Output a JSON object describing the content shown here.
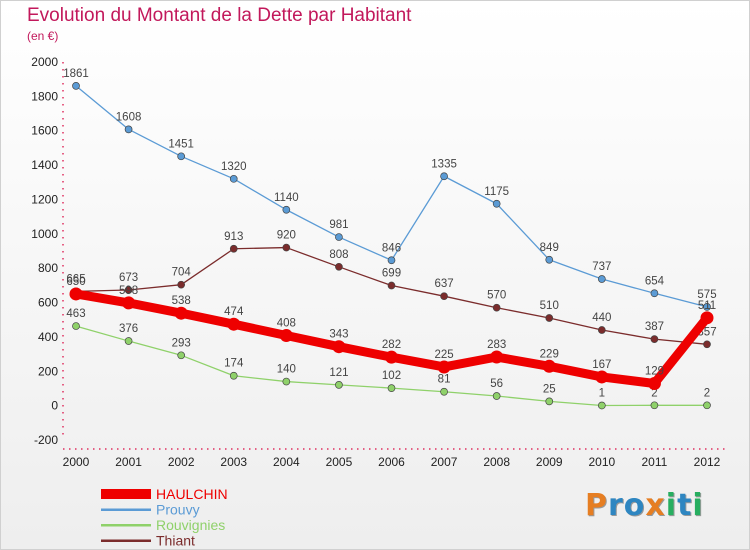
{
  "title": "Evolution du Montant de la Dette par Habitant",
  "subtitle": "(en €)",
  "logo": {
    "text": "Proxiti",
    "colors": [
      "#e67e22",
      "#2e86c1",
      "#2e86c1",
      "#e67e22",
      "#27ae60",
      "#2e86c1",
      "#27ae60"
    ]
  },
  "chart_data": {
    "type": "line",
    "x": [
      "2000",
      "2001",
      "2002",
      "2003",
      "2004",
      "2005",
      "2006",
      "2007",
      "2008",
      "2009",
      "2010",
      "2011",
      "2012"
    ],
    "ylim": [
      -200,
      2000
    ],
    "yticks": [
      -200,
      0,
      200,
      400,
      600,
      800,
      1000,
      1200,
      1400,
      1600,
      1800,
      2000
    ],
    "grid": false,
    "legend": "bottom-left",
    "series": [
      {
        "name": "HAULCHIN",
        "color": "#ee0000",
        "bold": true,
        "values": [
          650,
          598,
          538,
          474,
          408,
          343,
          282,
          225,
          283,
          229,
          167,
          129,
          511
        ],
        "labels": [
          "650",
          "598",
          "538",
          "474",
          "408",
          "343",
          "282",
          "225",
          "283",
          "229",
          "167",
          "129",
          "511"
        ]
      },
      {
        "name": "Prouvy",
        "color": "#5b9bd5",
        "values": [
          1861,
          1608,
          1451,
          1320,
          1140,
          981,
          846,
          1335,
          1175,
          849,
          737,
          654,
          575
        ],
        "labels": [
          "1861",
          "1608",
          "1451",
          "1320",
          "1140",
          "981",
          "846",
          "1335",
          "1175",
          "849",
          "737",
          "654",
          "575"
        ]
      },
      {
        "name": "Rouvignies",
        "color": "#8fd16a",
        "values": [
          463,
          376,
          293,
          174,
          140,
          121,
          102,
          81,
          56,
          25,
          1,
          2,
          2
        ],
        "labels": [
          "463",
          "376",
          "293",
          "174",
          "140",
          "121",
          "102",
          "81",
          "56",
          "25",
          "1",
          "2",
          "2"
        ]
      },
      {
        "name": "Thiant",
        "color": "#7b2c2c",
        "values": [
          665,
          673,
          704,
          913,
          920,
          808,
          699,
          637,
          570,
          510,
          440,
          387,
          357
        ],
        "labels": [
          "665",
          "673",
          "704",
          "913",
          "920",
          "808",
          "699",
          "637",
          "570",
          "510",
          "440",
          "387",
          "357"
        ]
      }
    ]
  }
}
